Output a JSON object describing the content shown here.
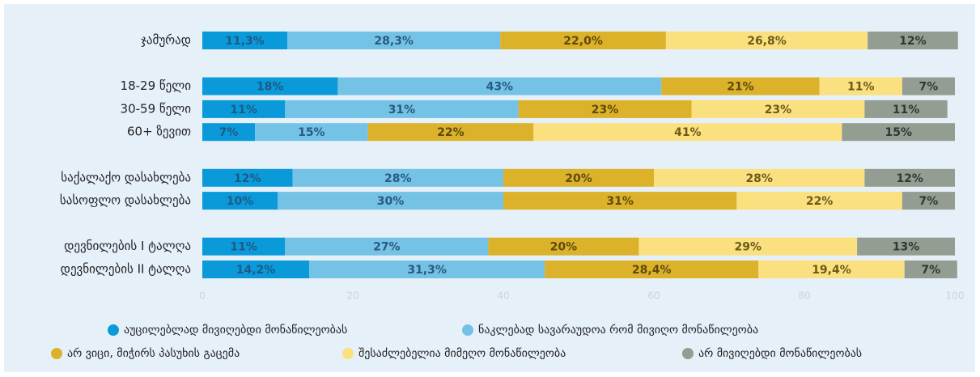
{
  "chart_data": {
    "type": "stacked-bar-horizontal",
    "categories": [
      "ჯამურად",
      null,
      "18-29 წელი",
      "30-59 წელი",
      "60+ ზევით",
      null,
      "საქალაქო დასახლება",
      "სასოფლო დასახლება",
      null,
      "დევნილების I ტალღა",
      "დევნილების II ტალღა"
    ],
    "series": [
      {
        "name": "აუცილებლად მივიღებდი მონაწილეობას",
        "color": "#0a9ad9",
        "values": [
          11.3,
          null,
          18,
          11,
          7,
          null,
          12,
          10,
          null,
          11,
          14.2
        ],
        "value_labels": [
          "11,3%",
          null,
          "18%",
          "11%",
          "7%",
          null,
          "12%",
          "10%",
          null,
          "11%",
          "14,2%"
        ]
      },
      {
        "name": "ნაკლებად სავარაუდოა რომ მივიღო მონაწილეობა",
        "color": "#74c2e6",
        "values": [
          28.3,
          null,
          43,
          31,
          15,
          null,
          28,
          30,
          null,
          27,
          31.3
        ],
        "value_labels": [
          "28,3%",
          null,
          "43%",
          "31%",
          "15%",
          null,
          "28%",
          "30%",
          null,
          "27%",
          "31,3%"
        ]
      },
      {
        "name": "არ ვიცი, მიჭირს პასუხის გაცემა",
        "color": "#dcb22a",
        "values": [
          22.0,
          null,
          21,
          23,
          22,
          null,
          20,
          31,
          null,
          20,
          28.4
        ],
        "value_labels": [
          "22,0%",
          null,
          "21%",
          "23%",
          "22%",
          null,
          "20%",
          "31%",
          null,
          "20%",
          "28,4%"
        ]
      },
      {
        "name": "შესაძლებელია მიმეღო მონაწილეობა",
        "color": "#fbe07f",
        "values": [
          26.8,
          null,
          11,
          23,
          41,
          null,
          28,
          22,
          null,
          29,
          19.4
        ],
        "value_labels": [
          "26,8%",
          null,
          "11%",
          "23%",
          "41%",
          null,
          "28%",
          "22%",
          null,
          "29%",
          "19,4%"
        ]
      },
      {
        "name": "არ მივიღებდი მონაწილეობას",
        "color": "#939d91",
        "values": [
          12,
          null,
          7,
          11,
          15,
          null,
          12,
          7,
          null,
          13,
          7
        ],
        "value_labels": [
          "12%",
          null,
          "7%",
          "11%",
          "15%",
          null,
          "12%",
          "7%",
          null,
          "13%",
          "7%"
        ]
      }
    ],
    "xlim": [
      0,
      100
    ],
    "xticks": [
      0,
      20,
      40,
      60,
      80,
      100
    ],
    "legend": "bottom"
  }
}
